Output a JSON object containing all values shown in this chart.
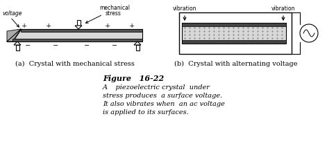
{
  "bg_color": "#ffffff",
  "fig_width": 4.71,
  "fig_height": 2.27,
  "dpi": 100,
  "caption_title": "Figure   16-22",
  "caption_lines": [
    "A    piezoelectric crystal  under",
    "stress produces  a surface voltage.",
    "It also vibrates when  an ac voltage",
    "is applied to its surfaces."
  ],
  "label_a": "(a)  Crystal with mechanical stress",
  "label_b": "(b)  Crystal with alternating voltage"
}
